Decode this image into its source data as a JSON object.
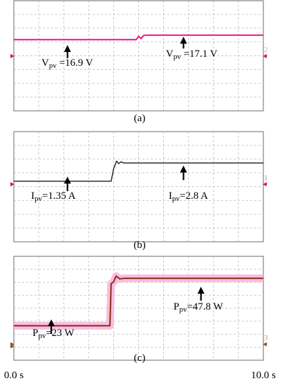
{
  "chart_data": [
    {
      "type": "line",
      "panel_label": "(a)",
      "time_range_s": [
        0,
        10
      ],
      "grid": true,
      "series": [
        {
          "color": "#e8177d",
          "x": [
            0,
            4.9,
            5.0,
            5.1,
            5.2,
            5.3,
            10
          ],
          "values": [
            16.9,
            16.9,
            17.05,
            16.95,
            17.08,
            17.1,
            17.1
          ]
        }
      ],
      "channel_marker": "2",
      "annotations": [
        {
          "sym": "V",
          "sub": "pv",
          "value": " =16.9 V",
          "at_x": 2.15
        },
        {
          "sym": "V",
          "sub": "pv",
          "value": " =17.1 V",
          "at_x": 6.8
        }
      ]
    },
    {
      "type": "line",
      "panel_label": "(b)",
      "time_range_s": [
        0,
        10
      ],
      "grid": true,
      "series": [
        {
          "color": "#1a1a1a",
          "x": [
            0,
            3.9,
            4.0,
            4.12,
            4.2,
            4.3,
            4.4,
            10
          ],
          "values": [
            1.35,
            1.35,
            2.35,
            2.95,
            2.75,
            2.9,
            2.8,
            2.8
          ]
        }
      ],
      "channel_marker": "1",
      "annotations": [
        {
          "sym": "I",
          "sub": "pv",
          "value": "=1.35 A",
          "at_x": 2.15
        },
        {
          "sym": "I",
          "sub": "pv",
          "value": "=2.8 A",
          "at_x": 6.8
        }
      ]
    },
    {
      "type": "line",
      "panel_label": "(c)",
      "time_range_s": [
        0,
        10
      ],
      "grid": true,
      "xtick_labels": [
        "0.0 s",
        "10.0 s"
      ],
      "series": [
        {
          "color": "#8b2c16",
          "x": [
            0,
            3.85,
            3.9,
            4.0,
            4.1,
            4.25,
            4.4,
            10
          ],
          "values": [
            23,
            23,
            45,
            46,
            49,
            47.5,
            47.8,
            47.8
          ]
        }
      ],
      "channel_marker": "3",
      "annotations": [
        {
          "sym": "P",
          "sub": "pv",
          "value": "=23 W",
          "at_x": 1.5
        },
        {
          "sym": "P",
          "sub": "pv",
          "value": "=47.8 W",
          "at_x": 7.5
        }
      ]
    }
  ]
}
